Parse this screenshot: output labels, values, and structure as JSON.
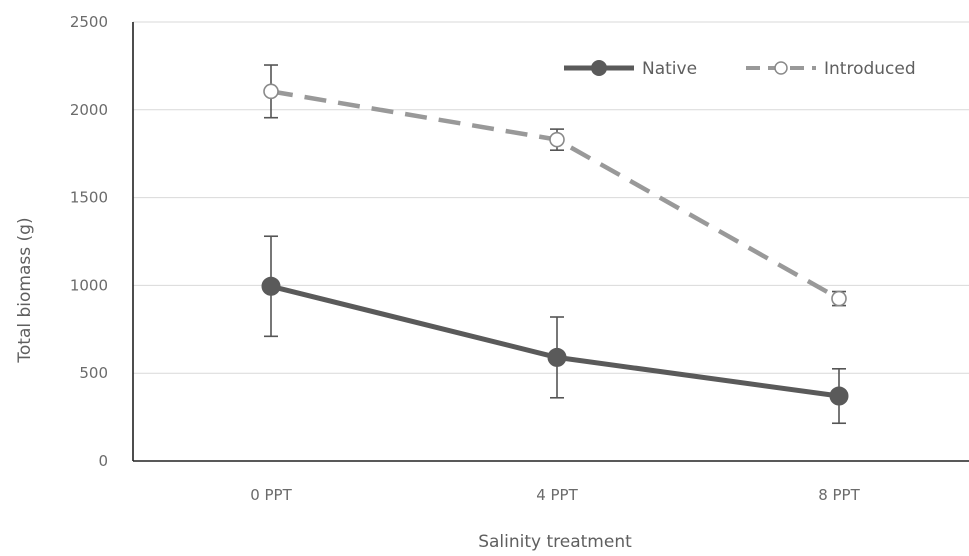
{
  "chart_data": {
    "type": "line",
    "title": "",
    "xlabel": "Salinity treatment",
    "ylabel": "Total biomass (g)",
    "categories": [
      "0 PPT",
      "4 PPT",
      "8 PPT"
    ],
    "ylim": [
      0,
      2500
    ],
    "yticks": [
      0,
      500,
      1000,
      1500,
      2000,
      2500
    ],
    "grid": "horizontal",
    "legend_position": "top-right",
    "series": [
      {
        "name": "Native",
        "values": [
          995,
          590,
          370
        ],
        "error": [
          285,
          230,
          155
        ],
        "color": "#5a5a5a",
        "line_style": "solid",
        "marker": "filled-circle"
      },
      {
        "name": "Introduced",
        "values": [
          2105,
          1830,
          925
        ],
        "error": [
          150,
          60,
          40
        ],
        "color": "#999999",
        "line_style": "dashed",
        "marker": "open-circle"
      }
    ]
  }
}
